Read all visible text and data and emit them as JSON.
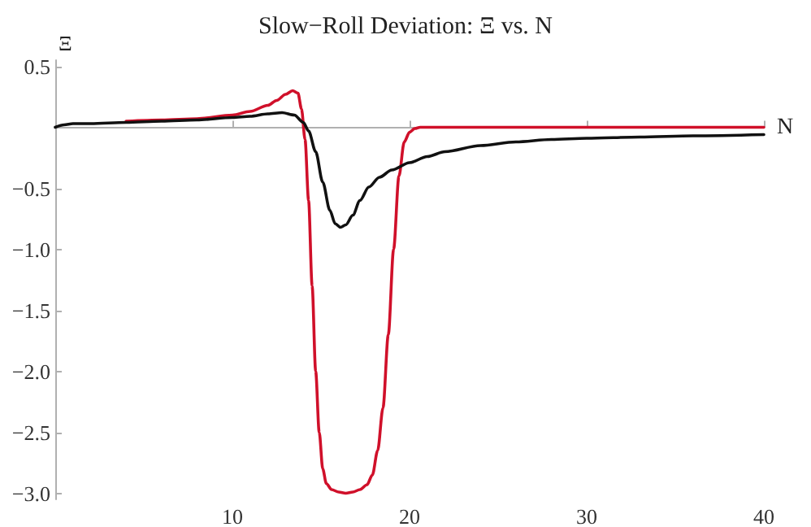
{
  "chart_data": {
    "type": "line",
    "title": "Slow−Roll Deviation: Ξ vs. N",
    "xlabel": "N",
    "ylabel": "Ξ",
    "xlim": [
      0,
      40
    ],
    "ylim": [
      -3.05,
      0.55
    ],
    "xticks": [
      10,
      20,
      30,
      40
    ],
    "yticks": [
      {
        "value": 0.5,
        "label": "0.5"
      },
      {
        "value": -0.5,
        "label": "−0.5"
      },
      {
        "value": -1,
        "label": "−1.0"
      },
      {
        "value": -1.5,
        "label": "−1.5"
      },
      {
        "value": -2,
        "label": "−2.0"
      },
      {
        "value": -2.5,
        "label": "−2.5"
      },
      {
        "value": -3,
        "label": "−3.0"
      }
    ],
    "grid": false,
    "marker": "none",
    "line_style": "solid",
    "series": [
      {
        "color": "#d0102a",
        "x": [
          4,
          6,
          8,
          10,
          11,
          12,
          12.5,
          13,
          13.4,
          13.7,
          13.9,
          14.1,
          14.3,
          14.5,
          14.7,
          14.9,
          15.1,
          15.3,
          15.6,
          16,
          16.4,
          16.8,
          17.2,
          17.6,
          17.9,
          18.2,
          18.5,
          18.8,
          19.1,
          19.4,
          19.7,
          20,
          20.3,
          20.6,
          21,
          22,
          25,
          30,
          35,
          40
        ],
        "values": [
          0.05,
          0.06,
          0.07,
          0.1,
          0.13,
          0.18,
          0.22,
          0.27,
          0.3,
          0.28,
          0.15,
          -0.1,
          -0.6,
          -1.3,
          -2.0,
          -2.5,
          -2.8,
          -2.92,
          -2.97,
          -2.99,
          -3.0,
          -2.99,
          -2.97,
          -2.93,
          -2.85,
          -2.65,
          -2.3,
          -1.7,
          -1.0,
          -0.4,
          -0.12,
          -0.04,
          -0.01,
          0,
          0,
          0,
          0,
          0,
          0,
          0
        ]
      },
      {
        "color": "#111111",
        "x": [
          0,
          0.5,
          1,
          2,
          4,
          6,
          8,
          10,
          11,
          12,
          12.8,
          13.5,
          14,
          14.3,
          14.7,
          15.1,
          15.5,
          15.8,
          16.1,
          16.4,
          16.8,
          17.2,
          17.7,
          18.3,
          19,
          20,
          21,
          22,
          24,
          26,
          28,
          30,
          33,
          36,
          40
        ],
        "values": [
          0,
          0.02,
          0.03,
          0.03,
          0.04,
          0.05,
          0.06,
          0.08,
          0.09,
          0.11,
          0.12,
          0.1,
          0.04,
          -0.03,
          -0.2,
          -0.45,
          -0.68,
          -0.79,
          -0.82,
          -0.8,
          -0.72,
          -0.6,
          -0.49,
          -0.41,
          -0.35,
          -0.29,
          -0.24,
          -0.2,
          -0.15,
          -0.12,
          -0.1,
          -0.09,
          -0.08,
          -0.07,
          -0.06
        ]
      }
    ]
  }
}
